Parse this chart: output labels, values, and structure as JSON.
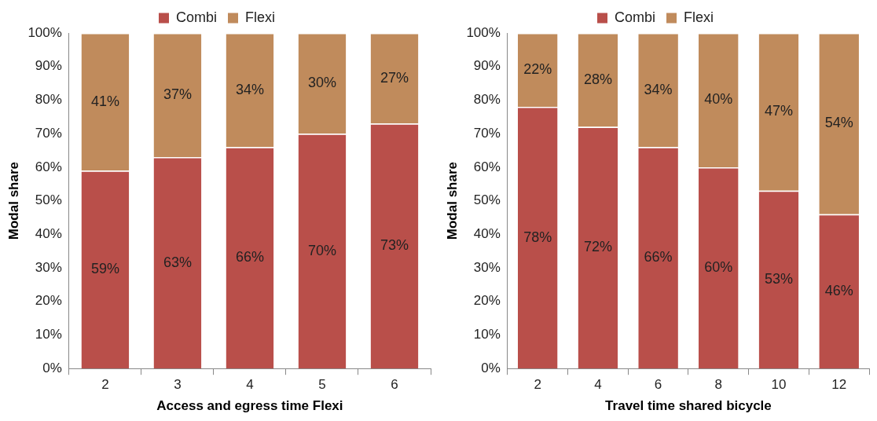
{
  "chart_data": [
    {
      "type": "bar",
      "stacked": true,
      "categories": [
        "2",
        "3",
        "4",
        "5",
        "6"
      ],
      "xlabel": "Access and egress time Flexi",
      "ylabel": "Modal share",
      "ylim": [
        0,
        100
      ],
      "yticks": [
        {
          "value": 0,
          "label": "0%"
        },
        {
          "value": 10,
          "label": "10%"
        },
        {
          "value": 20,
          "label": "20%"
        },
        {
          "value": 30,
          "label": "30%"
        },
        {
          "value": 40,
          "label": "40%"
        },
        {
          "value": 50,
          "label": "50%"
        },
        {
          "value": 60,
          "label": "60%"
        },
        {
          "value": 70,
          "label": "70%"
        },
        {
          "value": 80,
          "label": "80%"
        },
        {
          "value": 90,
          "label": "90%"
        },
        {
          "value": 100,
          "label": "100%"
        }
      ],
      "grid": false,
      "legend": "top",
      "series": [
        {
          "name": "Combi",
          "color": "#b94f4a",
          "values": [
            59,
            63,
            66,
            70,
            73
          ],
          "value_labels": [
            "59%",
            "63%",
            "66%",
            "70%",
            "73%"
          ]
        },
        {
          "name": "Flexi",
          "color": "#c08b5c",
          "values": [
            41,
            37,
            34,
            30,
            27
          ],
          "value_labels": [
            "41%",
            "37%",
            "34%",
            "30%",
            "27%"
          ]
        }
      ]
    },
    {
      "type": "bar",
      "stacked": true,
      "categories": [
        "2",
        "4",
        "6",
        "8",
        "10",
        "12"
      ],
      "xlabel": "Travel time shared bicycle",
      "ylabel": "Modal share",
      "ylim": [
        0,
        100
      ],
      "yticks": [
        {
          "value": 0,
          "label": "0%"
        },
        {
          "value": 10,
          "label": "10%"
        },
        {
          "value": 20,
          "label": "20%"
        },
        {
          "value": 30,
          "label": "30%"
        },
        {
          "value": 40,
          "label": "40%"
        },
        {
          "value": 50,
          "label": "50%"
        },
        {
          "value": 60,
          "label": "60%"
        },
        {
          "value": 70,
          "label": "70%"
        },
        {
          "value": 80,
          "label": "80%"
        },
        {
          "value": 90,
          "label": "90%"
        },
        {
          "value": 100,
          "label": "100%"
        }
      ],
      "grid": false,
      "legend": "top",
      "series": [
        {
          "name": "Combi",
          "color": "#b94f4a",
          "values": [
            78,
            72,
            66,
            60,
            53,
            46
          ],
          "value_labels": [
            "78%",
            "72%",
            "66%",
            "60%",
            "53%",
            "46%"
          ]
        },
        {
          "name": "Flexi",
          "color": "#c08b5c",
          "values": [
            22,
            28,
            34,
            40,
            47,
            54
          ],
          "value_labels": [
            "22%",
            "28%",
            "34%",
            "40%",
            "47%",
            "54%"
          ]
        }
      ]
    }
  ]
}
